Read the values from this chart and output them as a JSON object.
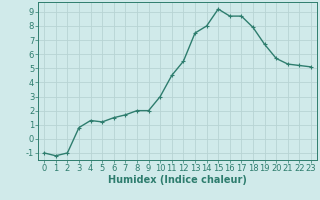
{
  "x": [
    0,
    1,
    2,
    3,
    4,
    5,
    6,
    7,
    8,
    9,
    10,
    11,
    12,
    13,
    14,
    15,
    16,
    17,
    18,
    19,
    20,
    21,
    22,
    23
  ],
  "y": [
    -1,
    -1.2,
    -1,
    0.8,
    1.3,
    1.2,
    1.5,
    1.7,
    2.0,
    2.0,
    3.0,
    4.5,
    5.5,
    7.5,
    8.0,
    9.2,
    8.7,
    8.7,
    7.9,
    6.7,
    5.7,
    5.3,
    5.2,
    5.1
  ],
  "line_color": "#2e7d6e",
  "marker": "+",
  "marker_size": 3,
  "bg_color": "#d0eaea",
  "grid_color": "#b8d4d4",
  "xlabel": "Humidex (Indice chaleur)",
  "xlabel_fontsize": 7,
  "tick_fontsize": 6,
  "xlim": [
    -0.5,
    23.5
  ],
  "ylim": [
    -1.5,
    9.7
  ],
  "yticks": [
    -1,
    0,
    1,
    2,
    3,
    4,
    5,
    6,
    7,
    8,
    9
  ],
  "xticks": [
    0,
    1,
    2,
    3,
    4,
    5,
    6,
    7,
    8,
    9,
    10,
    11,
    12,
    13,
    14,
    15,
    16,
    17,
    18,
    19,
    20,
    21,
    22,
    23
  ],
  "line_width": 1.0,
  "marker_edge_width": 0.8
}
